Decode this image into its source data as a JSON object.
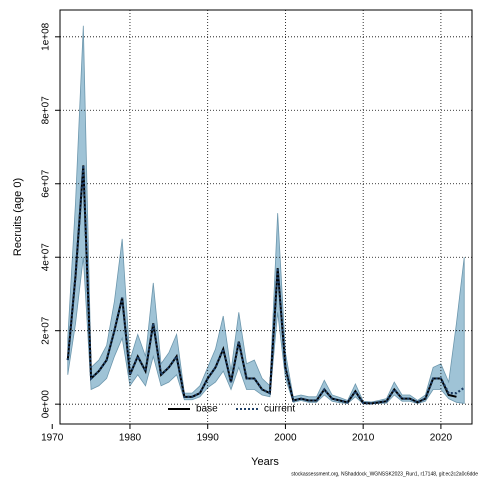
{
  "chart_data": {
    "type": "line",
    "x_label": "Years",
    "y_label": "Recruits (age 0)",
    "footnote": "stockassessment.org, NShaddock_WGNSSK2023_Run1, r17148, git:ec2c2a0c6dde",
    "x": [
      1972,
      1973,
      1974,
      1975,
      1976,
      1977,
      1978,
      1979,
      1980,
      1981,
      1982,
      1983,
      1984,
      1985,
      1986,
      1987,
      1988,
      1989,
      1990,
      1991,
      1992,
      1993,
      1994,
      1995,
      1996,
      1997,
      1998,
      1999,
      2000,
      2001,
      2002,
      2003,
      2004,
      2005,
      2006,
      2007,
      2008,
      2009,
      2010,
      2011,
      2012,
      2013,
      2014,
      2015,
      2016,
      2017,
      2018,
      2019,
      2020,
      2021,
      2022,
      2023
    ],
    "series": [
      {
        "name": "base",
        "color": "#000000",
        "values": [
          12000000.0,
          35000000.0,
          65000000.0,
          7000000.0,
          9000000.0,
          12000000.0,
          20000000.0,
          29000000.0,
          8000000.0,
          13000000.0,
          9000000.0,
          22000000.0,
          8000000.0,
          10000000.0,
          13000000.0,
          2000000.0,
          2000000.0,
          3000000.0,
          7000000.0,
          10000000.0,
          15000000.0,
          6000000.0,
          17000000.0,
          7000000.0,
          7000000.0,
          4000000.0,
          3000000.0,
          37000000.0,
          10000000.0,
          1000000.0,
          1500000.0,
          1000000.0,
          1000000.0,
          4000000.0,
          1500000.0,
          1000000.0,
          500000.0,
          3500000.0,
          300000.0,
          200000.0,
          500000.0,
          800000.0,
          4000000.0,
          1500000.0,
          1500000.0,
          500000.0,
          1500000.0,
          7000000.0,
          7000000.0,
          2500000.0,
          2000000.0,
          null
        ]
      },
      {
        "name": "current",
        "color": "#1f3f66",
        "values": [
          12000000.0,
          35000000.0,
          65000000.0,
          7000000.0,
          9000000.0,
          12000000.0,
          20000000.0,
          29000000.0,
          8000000.0,
          13000000.0,
          9000000.0,
          22000000.0,
          8000000.0,
          10000000.0,
          13000000.0,
          2000000.0,
          2000000.0,
          3000000.0,
          7000000.0,
          10000000.0,
          15000000.0,
          6000000.0,
          17000000.0,
          7000000.0,
          7000000.0,
          4000000.0,
          3000000.0,
          37000000.0,
          10000000.0,
          1000000.0,
          1500000.0,
          1000000.0,
          1000000.0,
          4000000.0,
          1500000.0,
          1000000.0,
          500000.0,
          3500000.0,
          300000.0,
          200000.0,
          500000.0,
          800000.0,
          4000000.0,
          1500000.0,
          1500000.0,
          500000.0,
          1500000.0,
          7000000.0,
          7000000.0,
          3000000.0,
          3000000.0,
          4500000.0
        ]
      }
    ],
    "band": {
      "color": "#9fc3d6",
      "upper": [
        18000000.0,
        55000000.0,
        103000000.0,
        10000000.0,
        12000000.0,
        16000000.0,
        28000000.0,
        45000000.0,
        12000000.0,
        19000000.0,
        13000000.0,
        33000000.0,
        11000000.0,
        14000000.0,
        19000000.0,
        3000000.0,
        3000000.0,
        5000000.0,
        10000000.0,
        15000000.0,
        24000000.0,
        9000000.0,
        25000000.0,
        11000000.0,
        12000000.0,
        7000000.0,
        5000000.0,
        52000000.0,
        14000000.0,
        2000000.0,
        2500000.0,
        2000000.0,
        2000000.0,
        6500000.0,
        2500000.0,
        1800000.0,
        1000000.0,
        5500000.0,
        800000.0,
        600000.0,
        1000000.0,
        1500000.0,
        6000000.0,
        2500000.0,
        2500000.0,
        1000000.0,
        2500000.0,
        10000000.0,
        11000000.0,
        6000000.0,
        22000000.0,
        40000000.0
      ],
      "lower": [
        8000000.0,
        22000000.0,
        40000000.0,
        4000000.0,
        5000000.0,
        7000000.0,
        13000000.0,
        18000000.0,
        5000000.0,
        8000000.0,
        5000000.0,
        13000000.0,
        5000000.0,
        6000000.0,
        8000000.0,
        1200000.0,
        1200000.0,
        2000000.0,
        4500000.0,
        6000000.0,
        9000000.0,
        4000000.0,
        10000000.0,
        4000000.0,
        4000000.0,
        2500000.0,
        2000000.0,
        25000000.0,
        7000000.0,
        500000.0,
        1000000.0,
        500000.0,
        500000.0,
        2500000.0,
        800000.0,
        400000.0,
        200000.0,
        2000000.0,
        100000.0,
        50000.0,
        200000.0,
        300000.0,
        2500000.0,
        800000.0,
        800000.0,
        200000.0,
        800000.0,
        4000000.0,
        4000000.0,
        1500000.0,
        500000.0,
        200000.0
      ]
    },
    "xlim": [
      1971,
      2024
    ],
    "xticks": [
      1970,
      1980,
      1990,
      2000,
      2010,
      2020
    ],
    "ylim": [
      -5400000.0,
      107300000.0
    ],
    "yticks": [
      {
        "value": 0,
        "label": "0e+00"
      },
      {
        "value": 20000000.0,
        "label": "2e+07"
      },
      {
        "value": 40000000.0,
        "label": "4e+07"
      },
      {
        "value": 60000000.0,
        "label": "6e+07"
      },
      {
        "value": 80000000.0,
        "label": "8e+07"
      },
      {
        "value": 100000000.0,
        "label": "1e+08"
      }
    ],
    "grid": true,
    "legend": "bottom"
  }
}
